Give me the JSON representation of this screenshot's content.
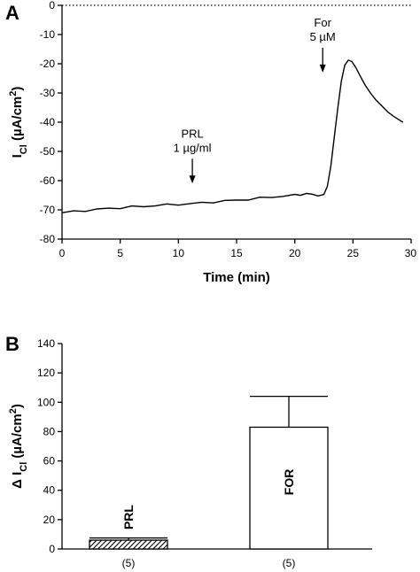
{
  "chart_data": [
    {
      "panel": "A",
      "type": "line",
      "xlabel": "Time (min)",
      "ylabel_main": "I",
      "ylabel_sub": "Cl",
      "ylabel_unit": " (µA/cm",
      "ylabel_sup": "2",
      "ylabel_close": ")",
      "xlim": [
        0,
        30
      ],
      "ylim": [
        -80,
        0
      ],
      "xticks": [
        "0",
        "5",
        "10",
        "15",
        "20",
        "25",
        "30"
      ],
      "yticks": [
        "0",
        "-10",
        "-20",
        "-30",
        "-40",
        "-50",
        "-60",
        "-70",
        "-80"
      ],
      "zero_line": "dotted",
      "annotations": [
        {
          "line1": "PRL",
          "line2": "1 µg/ml",
          "x": 11.2,
          "y": -61
        },
        {
          "line1": "For",
          "line2": "5 µM",
          "x": 22.4,
          "y": -23
        }
      ],
      "series": [
        {
          "x": [
            0,
            1,
            2,
            3,
            4,
            5,
            6,
            7,
            8,
            9,
            10,
            11,
            12,
            13,
            14,
            15,
            16,
            17,
            18,
            19,
            20,
            20.5,
            21,
            21.5,
            22,
            22.5,
            22.8,
            23.1,
            23.4,
            23.7,
            24.0,
            24.3,
            24.6,
            24.9,
            25.2,
            25.6,
            26.0,
            26.5,
            27.0,
            27.5,
            28.0,
            28.5,
            29.0,
            29.3
          ],
          "y": [
            -71,
            -70.6,
            -70.2,
            -69.9,
            -69.5,
            -69.3,
            -69.0,
            -68.8,
            -68.5,
            -68.3,
            -68.1,
            -67.9,
            -67.6,
            -67.3,
            -67.0,
            -66.7,
            -66.4,
            -66.0,
            -65.6,
            -65.3,
            -65.0,
            -64.7,
            -64.5,
            -64.8,
            -64.9,
            -65.0,
            -62,
            -55,
            -45,
            -35,
            -26,
            -20.5,
            -18.8,
            -19.2,
            -21,
            -24,
            -27,
            -30,
            -32.5,
            -34.5,
            -36.5,
            -38,
            -39.3,
            -40
          ]
        }
      ]
    },
    {
      "panel": "B",
      "type": "bar",
      "ylabel_prefix": "Δ I",
      "ylabel_sub": "Cl",
      "ylabel_unit": " (µA/cm",
      "ylabel_sup": "2",
      "ylabel_close": ")",
      "ylim": [
        0,
        140
      ],
      "yticks": [
        "0",
        "20",
        "40",
        "60",
        "80",
        "100",
        "120",
        "140"
      ],
      "categories": [
        "(5)",
        "(5)"
      ],
      "bar_labels": [
        "PRL",
        "FOR"
      ],
      "values": [
        6,
        83
      ],
      "errors": [
        1.5,
        21
      ],
      "fills": [
        "hatched",
        "white"
      ]
    }
  ]
}
